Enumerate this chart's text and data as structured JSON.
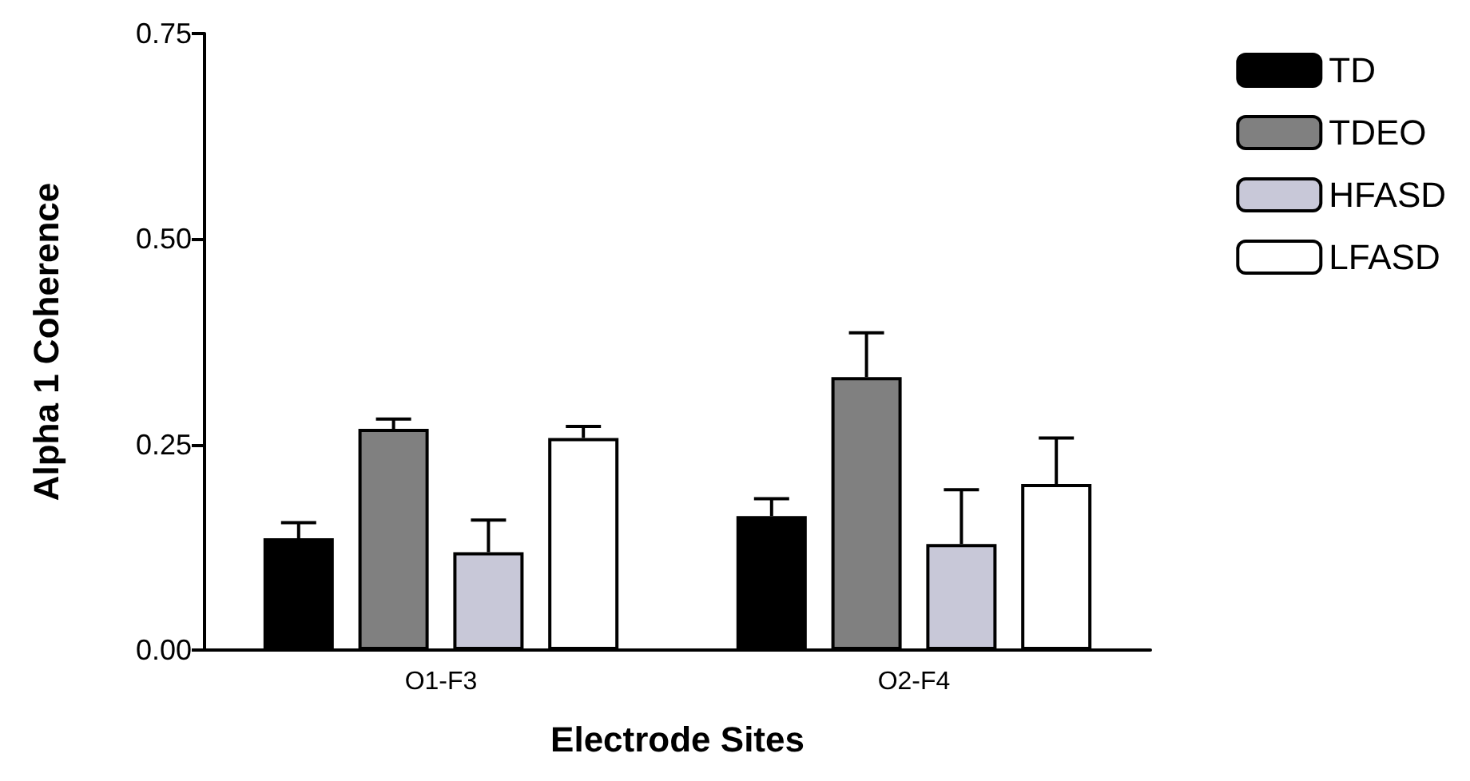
{
  "chart_data": {
    "type": "bar",
    "xlabel": "Electrode Sites",
    "ylabel": "Alpha 1 Coherence",
    "categories": [
      "O1-F3",
      "O2-F4"
    ],
    "series": [
      {
        "name": "TD",
        "color": "#000000",
        "values": [
          0.136,
          0.163
        ],
        "errors": [
          [
            0.136,
            0.155
          ],
          [
            0.163,
            0.184
          ]
        ]
      },
      {
        "name": "TDEO",
        "color": "#808080",
        "values": [
          0.269,
          0.332
        ],
        "errors": [
          [
            0.269,
            0.281
          ],
          [
            0.332,
            0.386
          ]
        ]
      },
      {
        "name": "HFASD",
        "color": "#c8c8d8",
        "values": [
          0.119,
          0.129
        ],
        "errors": [
          [
            0.119,
            0.158
          ],
          [
            0.129,
            0.195
          ]
        ]
      },
      {
        "name": "LFASD",
        "color": "#ffffff",
        "values": [
          0.258,
          0.202
        ],
        "errors": [
          [
            0.258,
            0.272
          ],
          [
            0.202,
            0.258
          ]
        ]
      }
    ],
    "ylim": [
      0,
      0.75
    ],
    "yticks": [
      {
        "value": 0,
        "label": "0.00"
      },
      {
        "value": 0.25,
        "label": "0.25"
      },
      {
        "value": 0.5,
        "label": "0.50"
      },
      {
        "value": 0.75,
        "label": "0.75"
      }
    ],
    "grid": false,
    "legend": "top right"
  }
}
